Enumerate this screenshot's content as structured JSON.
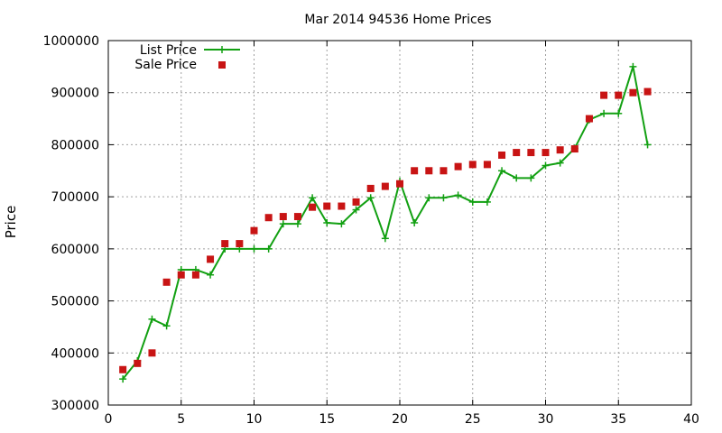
{
  "chart_data": {
    "type": "line",
    "title": "Mar 2014 94536 Home Prices",
    "xlabel": "",
    "ylabel": "Price",
    "xlim": [
      0,
      40
    ],
    "ylim": [
      300000,
      1000000
    ],
    "xticks": [
      0,
      5,
      10,
      15,
      20,
      25,
      30,
      35,
      40
    ],
    "yticks": [
      300000,
      400000,
      500000,
      600000,
      700000,
      800000,
      900000,
      1000000
    ],
    "grid": true,
    "legend_position": "top-left",
    "series": [
      {
        "name": "List Price",
        "style": "line-points",
        "marker": "plus",
        "color": "#12a012",
        "x": [
          1,
          2,
          3,
          4,
          5,
          6,
          7,
          8,
          9,
          10,
          11,
          12,
          13,
          14,
          15,
          16,
          17,
          18,
          19,
          20,
          21,
          22,
          23,
          24,
          25,
          26,
          27,
          28,
          29,
          30,
          31,
          32,
          33,
          34,
          35,
          36,
          37
        ],
        "values": [
          350000,
          385000,
          465000,
          452000,
          560000,
          560000,
          550000,
          600000,
          600000,
          600000,
          600000,
          648000,
          648000,
          698000,
          650000,
          648000,
          675000,
          698000,
          620000,
          730000,
          650000,
          698000,
          698000,
          703000,
          690000,
          690000,
          750000,
          736000,
          736000,
          760000,
          765000,
          793000,
          848000,
          860000,
          860000,
          950000,
          800000
        ]
      },
      {
        "name": "Sale Price",
        "style": "points",
        "marker": "square",
        "color": "#c81414",
        "x": [
          1,
          2,
          3,
          4,
          5,
          6,
          7,
          8,
          9,
          10,
          11,
          12,
          13,
          14,
          15,
          16,
          17,
          18,
          19,
          20,
          21,
          22,
          23,
          24,
          25,
          26,
          27,
          28,
          29,
          30,
          31,
          32,
          33,
          34,
          35,
          36,
          37
        ],
        "values": [
          368000,
          380000,
          400000,
          536000,
          550000,
          550000,
          580000,
          610000,
          610000,
          635000,
          660000,
          662000,
          662000,
          680000,
          682000,
          682000,
          690000,
          716000,
          720000,
          725000,
          750000,
          750000,
          750000,
          758000,
          762000,
          762000,
          780000,
          785000,
          785000,
          785000,
          790000,
          792000,
          850000,
          895000,
          895000,
          900000,
          902000
        ]
      }
    ]
  }
}
